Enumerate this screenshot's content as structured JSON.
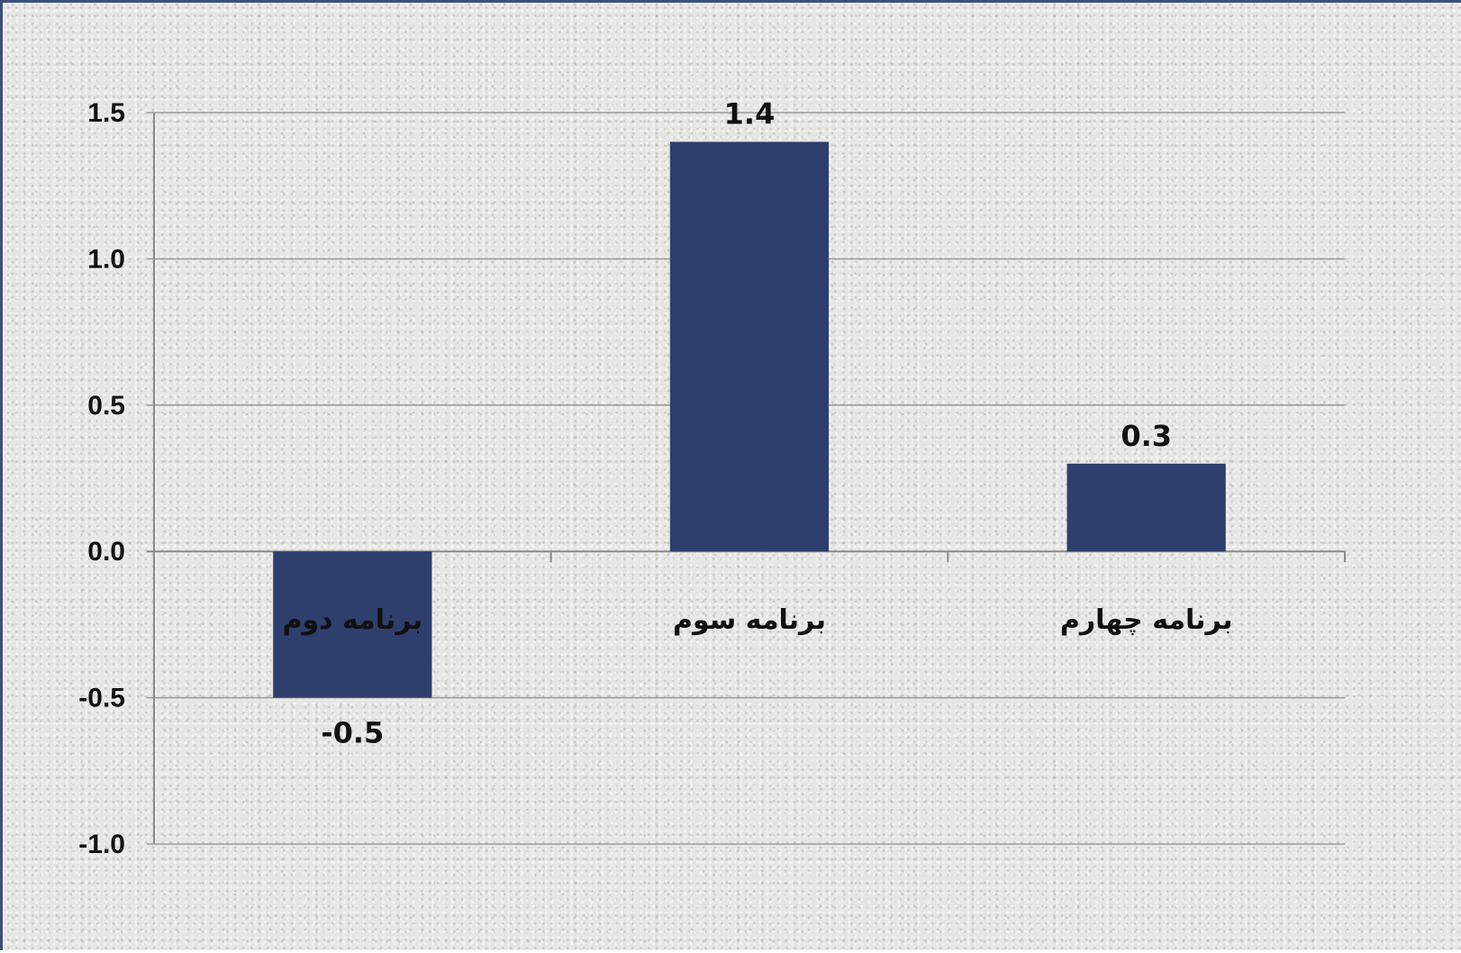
{
  "chart_data": {
    "type": "bar",
    "categories": [
      "برنامه دوم",
      "برنامه سوم",
      "برنامه چهارم"
    ],
    "values": [
      -0.5,
      1.4,
      0.3
    ],
    "data_labels": [
      "-0.5",
      "1.4",
      "0.3"
    ],
    "title": "",
    "xlabel": "",
    "ylabel": "",
    "ylim": [
      -1.0,
      1.5
    ],
    "yticks": [
      1.5,
      1.0,
      0.5,
      0.0,
      -0.5,
      -1.0
    ],
    "ytick_labels": [
      "1.5",
      "1.0",
      "0.5",
      "0.0",
      "-0.5",
      "-1.0"
    ],
    "grid": true,
    "legend": "none",
    "bar_color": "#2e3f6e"
  }
}
